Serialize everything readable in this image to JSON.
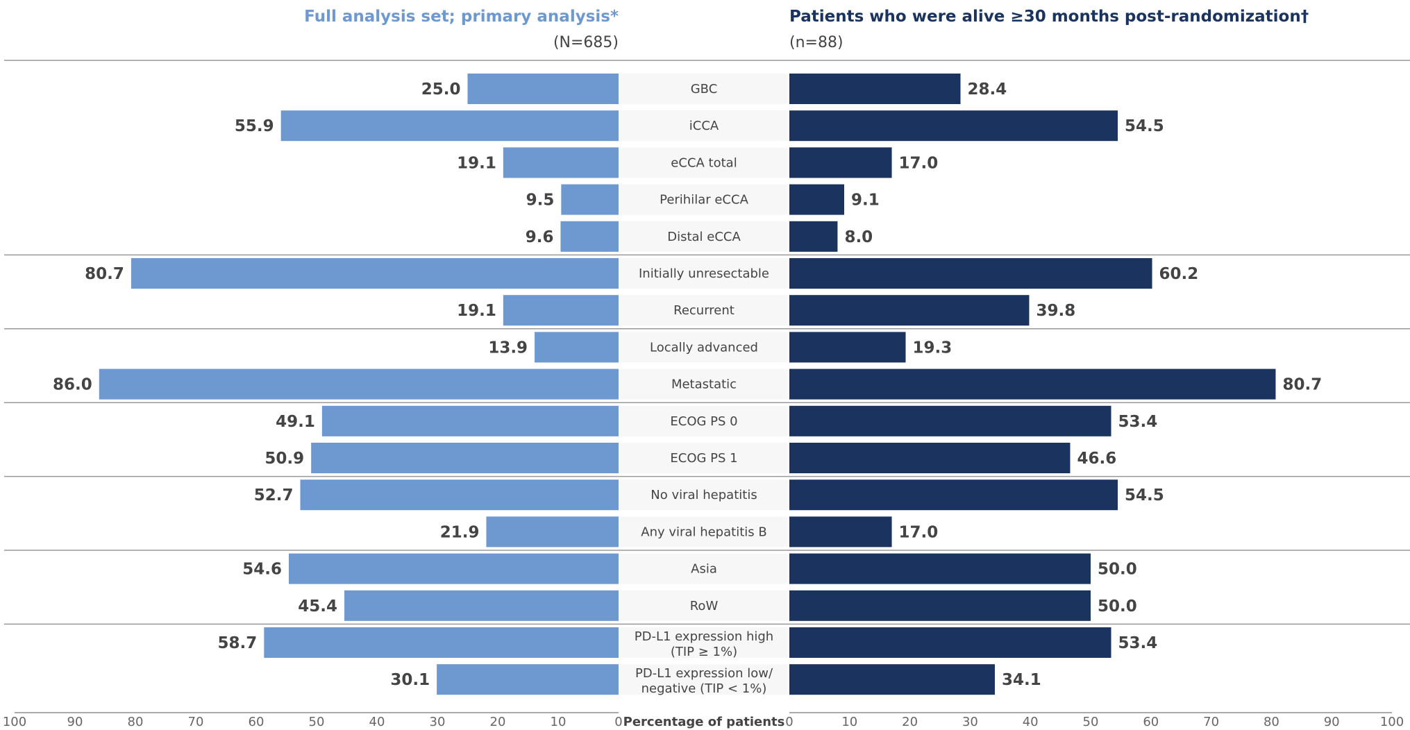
{
  "chart_data": {
    "type": "bar",
    "orientation": "horizontal-butterfly",
    "categories": [
      [
        "GBC"
      ],
      [
        "iCCA"
      ],
      [
        "eCCA total"
      ],
      [
        "Perihilar eCCA"
      ],
      [
        "Distal eCCA"
      ],
      [
        "Initially unresectable"
      ],
      [
        "Recurrent"
      ],
      [
        "Locally advanced"
      ],
      [
        "Metastatic"
      ],
      [
        "ECOG PS 0"
      ],
      [
        "ECOG PS 1"
      ],
      [
        "No viral hepatitis"
      ],
      [
        "Any viral hepatitis B"
      ],
      [
        "Asia"
      ],
      [
        "RoW"
      ],
      [
        "PD-L1 expression high",
        "(TIP ≥ 1%)"
      ],
      [
        "PD-L1 expression low/",
        "negative (TIP < 1%)"
      ]
    ],
    "group_breaks_after": [
      4,
      6,
      8,
      10,
      12,
      14
    ],
    "series": [
      {
        "name": "Full analysis set; primary analysis*",
        "n_label": "(N=685)",
        "side": "left",
        "color": "#6d98d0",
        "values": [
          25.0,
          55.9,
          19.1,
          9.5,
          9.6,
          80.7,
          19.1,
          13.9,
          86.0,
          49.1,
          50.9,
          52.7,
          21.9,
          54.6,
          45.4,
          58.7,
          30.1
        ]
      },
      {
        "name": "Patients who were alive ≥30 months post-randomization†",
        "n_label": "(n=88)",
        "side": "right",
        "color": "#1a335f",
        "values": [
          28.4,
          54.5,
          17.0,
          9.1,
          8.0,
          60.2,
          39.8,
          19.3,
          80.7,
          53.4,
          46.6,
          54.5,
          17.0,
          50.0,
          50.0,
          53.4,
          34.1
        ]
      }
    ],
    "xlabel": "Percentage of patients",
    "xlim": [
      0,
      100
    ],
    "xticks": [
      0,
      10,
      20,
      30,
      40,
      50,
      60,
      70,
      80,
      90,
      100
    ],
    "grid": false
  }
}
